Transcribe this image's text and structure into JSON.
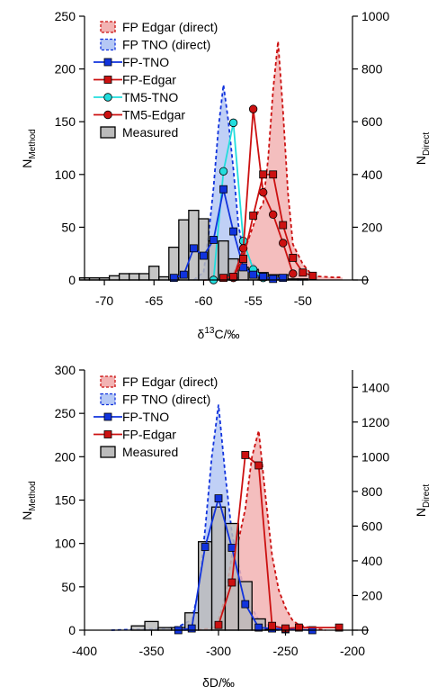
{
  "chart_data": [
    {
      "type": "histogram+line",
      "xlabel": "δ13C/‰",
      "xlabel_main": "δ",
      "xlabel_sup": "13",
      "xlabel_rest": "C/‰",
      "ylabel_left_main": "N",
      "ylabel_left_sub": "Method",
      "ylabel_right_main": "N",
      "ylabel_right_sub": "Direct",
      "xlim": [
        -72,
        -45
      ],
      "ylim_left": [
        0,
        250
      ],
      "ylim_right": [
        0,
        1000
      ],
      "xticks": [
        -70,
        -65,
        -60,
        -55,
        -50
      ],
      "xtick_labels": [
        "-70",
        "-65",
        "-60",
        "-55",
        "-50"
      ],
      "yticks_left": [
        0,
        50,
        100,
        150,
        200,
        250
      ],
      "ytick_labels_left": [
        "0",
        "50",
        "100",
        "150",
        "200",
        "250"
      ],
      "yticks_right": [
        0,
        200,
        400,
        600,
        800,
        1000
      ],
      "ytick_labels_right": [
        "0",
        "200",
        "400",
        "600",
        "800",
        "1000"
      ],
      "legend": [
        "FP Edgar (direct)",
        "FP TNO (direct)",
        "FP-TNO",
        "FP-Edgar",
        "TM5-TNO",
        "TM5-Edgar",
        "Measured"
      ],
      "colors": {
        "edgar": "#cc1111",
        "edgar_fill": "#f2b3b3",
        "tno": "#1133dd",
        "tno_fill": "#b5c8f5",
        "tm5tno": "#22dddd",
        "measured": "#bbbbbb"
      },
      "measured": {
        "bin_width": 1,
        "bins": [
          [
            -72,
            2
          ],
          [
            -71,
            2
          ],
          [
            -70,
            2
          ],
          [
            -69,
            4
          ],
          [
            -68,
            6
          ],
          [
            -67,
            6
          ],
          [
            -66,
            6
          ],
          [
            -65,
            13
          ],
          [
            -64,
            3
          ],
          [
            -63,
            31
          ],
          [
            -62,
            57
          ],
          [
            -61,
            66
          ],
          [
            -60,
            58
          ],
          [
            -59,
            37
          ],
          [
            -58,
            37
          ],
          [
            -57,
            20
          ],
          [
            -56,
            12
          ],
          [
            -55,
            10
          ],
          [
            -54,
            7
          ],
          [
            -53,
            5
          ],
          [
            -52,
            5
          ],
          [
            -51,
            1
          ],
          [
            -50,
            1
          ]
        ]
      },
      "fp_edgar_direct": [
        [
          -60,
          0
        ],
        [
          -58,
          5
        ],
        [
          -57,
          25
        ],
        [
          -56,
          100
        ],
        [
          -55,
          205
        ],
        [
          -54.5,
          260
        ],
        [
          -54,
          290
        ],
        [
          -53.5,
          460
        ],
        [
          -53,
          720
        ],
        [
          -52.5,
          905
        ],
        [
          -52,
          640
        ],
        [
          -51.5,
          330
        ],
        [
          -51,
          135
        ],
        [
          -50,
          60
        ],
        [
          -49,
          15
        ],
        [
          -47,
          10
        ],
        [
          -46,
          10
        ]
      ],
      "fp_tno_direct": [
        [
          -61,
          0
        ],
        [
          -60,
          30
        ],
        [
          -59.5,
          170
        ],
        [
          -59,
          350
        ],
        [
          -58.5,
          580
        ],
        [
          -58,
          740
        ],
        [
          -57.5,
          600
        ],
        [
          -57,
          420
        ],
        [
          -56.5,
          210
        ],
        [
          -56,
          110
        ],
        [
          -55,
          60
        ],
        [
          -54,
          20
        ],
        [
          -53,
          10
        ],
        [
          -52,
          5
        ],
        [
          -50,
          0
        ]
      ],
      "fp_tno": [
        [
          -63,
          2
        ],
        [
          -62,
          5
        ],
        [
          -61,
          30
        ],
        [
          -60,
          23
        ],
        [
          -59,
          38
        ],
        [
          -58,
          86
        ],
        [
          -57,
          46
        ],
        [
          -56,
          12
        ],
        [
          -55,
          5
        ],
        [
          -54,
          3
        ],
        [
          -53,
          1
        ],
        [
          -52,
          2
        ]
      ],
      "fp_edgar": [
        [
          -58,
          2
        ],
        [
          -57,
          3
        ],
        [
          -56,
          20
        ],
        [
          -55,
          61
        ],
        [
          -54,
          100
        ],
        [
          -53,
          100
        ],
        [
          -52,
          52
        ],
        [
          -51,
          21
        ],
        [
          -50,
          7
        ],
        [
          -49,
          4
        ]
      ],
      "tm5_tno": [
        [
          -59,
          0
        ],
        [
          -58,
          103
        ],
        [
          -57,
          149
        ],
        [
          -56,
          37
        ],
        [
          -55,
          10
        ],
        [
          -54,
          2
        ]
      ],
      "tm5_edgar": [
        [
          -57,
          2
        ],
        [
          -56,
          30
        ],
        [
          -55,
          162
        ],
        [
          -54,
          83
        ],
        [
          -53,
          62
        ],
        [
          -52,
          35
        ],
        [
          -51,
          6
        ]
      ]
    },
    {
      "type": "histogram+line",
      "xlabel": "δD/‰",
      "xlabel_main": "δD/‰",
      "ylabel_left_main": "N",
      "ylabel_left_sub": "Method",
      "ylabel_right_main": "N",
      "ylabel_right_sub": "Direct",
      "xlim": [
        -400,
        -200
      ],
      "ylim_left": [
        0,
        300
      ],
      "ylim_right": [
        0,
        1500
      ],
      "xticks": [
        -400,
        -350,
        -300,
        -250,
        -200
      ],
      "xtick_labels": [
        "-400",
        "-350",
        "-300",
        "-250",
        "-200"
      ],
      "yticks_left": [
        0,
        50,
        100,
        150,
        200,
        250,
        300
      ],
      "ytick_labels_left": [
        "0",
        "50",
        "100",
        "150",
        "200",
        "250",
        "300"
      ],
      "yticks_right": [
        0,
        200,
        400,
        600,
        800,
        1000,
        1200,
        1400
      ],
      "ytick_labels_right": [
        "0",
        "200",
        "400",
        "600",
        "800",
        "1000",
        "1200",
        "1400"
      ],
      "legend": [
        "FP Edgar (direct)",
        "FP TNO (direct)",
        "FP-TNO",
        "FP-Edgar",
        "Measured"
      ],
      "colors": {
        "edgar": "#cc1111",
        "edgar_fill": "#f2b3b3",
        "tno": "#1133dd",
        "tno_fill": "#b5c8f5",
        "measured": "#bbbbbb"
      },
      "measured": {
        "bin_width": 10,
        "bins": [
          [
            -360,
            5
          ],
          [
            -350,
            10
          ],
          [
            -340,
            3
          ],
          [
            -330,
            3
          ],
          [
            -320,
            20
          ],
          [
            -310,
            102
          ],
          [
            -300,
            142
          ],
          [
            -290,
            123
          ],
          [
            -280,
            56
          ],
          [
            -270,
            13
          ],
          [
            -260,
            1
          ]
        ]
      },
      "fp_edgar_direct": [
        [
          -320,
          0
        ],
        [
          -305,
          10
        ],
        [
          -300,
          60
        ],
        [
          -295,
          190
        ],
        [
          -290,
          430
        ],
        [
          -285,
          520
        ],
        [
          -280,
          700
        ],
        [
          -275,
          1000
        ],
        [
          -270,
          1150
        ],
        [
          -265,
          780
        ],
        [
          -260,
          430
        ],
        [
          -255,
          230
        ],
        [
          -250,
          130
        ],
        [
          -245,
          60
        ],
        [
          -240,
          30
        ],
        [
          -230,
          10
        ],
        [
          -220,
          0
        ]
      ],
      "fp_tno_direct": [
        [
          -380,
          0
        ],
        [
          -340,
          10
        ],
        [
          -330,
          20
        ],
        [
          -320,
          60
        ],
        [
          -315,
          220
        ],
        [
          -310,
          580
        ],
        [
          -305,
          1000
        ],
        [
          -300,
          1300
        ],
        [
          -295,
          900
        ],
        [
          -290,
          560
        ],
        [
          -285,
          380
        ],
        [
          -280,
          190
        ],
        [
          -270,
          60
        ],
        [
          -260,
          15
        ],
        [
          -250,
          5
        ]
      ],
      "fp_tno": [
        [
          -330,
          0
        ],
        [
          -320,
          2
        ],
        [
          -310,
          96
        ],
        [
          -300,
          152
        ],
        [
          -290,
          95
        ],
        [
          -280,
          30
        ],
        [
          -270,
          3
        ],
        [
          -260,
          2
        ],
        [
          -250,
          1
        ],
        [
          -230,
          0
        ]
      ],
      "fp_edgar": [
        [
          -300,
          6
        ],
        [
          -290,
          55
        ],
        [
          -280,
          202
        ],
        [
          -270,
          190
        ],
        [
          -260,
          5
        ],
        [
          -250,
          2
        ],
        [
          -240,
          3
        ],
        [
          -210,
          3
        ]
      ]
    }
  ]
}
